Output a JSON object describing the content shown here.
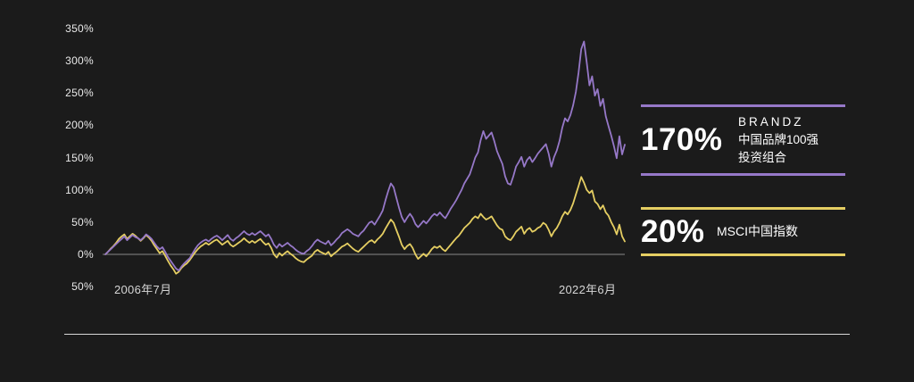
{
  "background": "#1b1b1b",
  "chart_data": {
    "type": "line",
    "title": "",
    "xlabel": "",
    "ylabel": "",
    "ylim": [
      -50,
      350
    ],
    "grid": false,
    "zero_line": true,
    "legend_position": "right",
    "x_start_label": "2006年7月",
    "x_end_label": "2022年6月",
    "y_ticks": [
      "350%",
      "300%",
      "250%",
      "200%",
      "150%",
      "100%",
      "50%",
      "0%",
      "50%"
    ],
    "y_tick_values": [
      350,
      300,
      250,
      200,
      150,
      100,
      50,
      0,
      -50
    ],
    "series": [
      {
        "name": "BRANDZ 中国品牌100强 投资组合",
        "color": "#9678c8",
        "final_label": "170%",
        "values": [
          0,
          4,
          8,
          12,
          16,
          20,
          24,
          28,
          22,
          26,
          30,
          27,
          25,
          22,
          26,
          31,
          28,
          24,
          18,
          12,
          8,
          11,
          4,
          -4,
          -10,
          -16,
          -22,
          -25,
          -19,
          -14,
          -10,
          -6,
          1,
          8,
          14,
          18,
          21,
          23,
          20,
          24,
          27,
          29,
          26,
          22,
          26,
          30,
          24,
          21,
          25,
          28,
          32,
          36,
          32,
          30,
          33,
          30,
          33,
          36,
          32,
          28,
          31,
          24,
          15,
          10,
          16,
          12,
          15,
          18,
          14,
          11,
          7,
          4,
          2,
          1,
          5,
          8,
          13,
          19,
          23,
          20,
          18,
          16,
          21,
          14,
          18,
          23,
          27,
          33,
          36,
          39,
          36,
          32,
          30,
          28,
          33,
          37,
          43,
          49,
          51,
          46,
          53,
          60,
          68,
          84,
          98,
          110,
          104,
          88,
          72,
          58,
          50,
          57,
          63,
          57,
          47,
          42,
          47,
          52,
          48,
          53,
          59,
          63,
          60,
          65,
          60,
          56,
          63,
          71,
          77,
          84,
          92,
          100,
          110,
          117,
          124,
          137,
          150,
          158,
          177,
          191,
          179,
          184,
          189,
          176,
          160,
          150,
          140,
          121,
          110,
          108,
          121,
          136,
          143,
          151,
          136,
          146,
          151,
          143,
          149,
          156,
          161,
          166,
          171,
          156,
          136,
          151,
          161,
          176,
          196,
          211,
          206,
          216,
          231,
          252,
          282,
          318,
          330,
          298,
          262,
          276,
          246,
          256,
          230,
          241,
          214,
          199,
          184,
          168,
          149,
          183,
          155,
          170
        ]
      },
      {
        "name": "MSCI中国指数",
        "color": "#e5ce62",
        "final_label": "20%",
        "values": [
          0,
          4,
          9,
          13,
          18,
          24,
          28,
          31,
          24,
          28,
          32,
          29,
          25,
          21,
          25,
          30,
          26,
          21,
          14,
          8,
          2,
          5,
          -2,
          -10,
          -17,
          -23,
          -30,
          -27,
          -21,
          -17,
          -14,
          -9,
          -3,
          3,
          8,
          12,
          15,
          18,
          15,
          18,
          21,
          23,
          19,
          15,
          18,
          21,
          15,
          12,
          15,
          18,
          21,
          25,
          21,
          18,
          21,
          18,
          21,
          24,
          19,
          15,
          17,
          10,
          0,
          -5,
          2,
          -2,
          2,
          5,
          1,
          -2,
          -6,
          -9,
          -11,
          -12,
          -8,
          -5,
          -2,
          4,
          7,
          4,
          2,
          0,
          4,
          -3,
          1,
          4,
          8,
          12,
          14,
          17,
          13,
          9,
          6,
          4,
          8,
          12,
          16,
          20,
          22,
          18,
          23,
          27,
          32,
          40,
          47,
          54,
          49,
          38,
          27,
          15,
          8,
          13,
          16,
          10,
          0,
          -7,
          -3,
          1,
          -3,
          2,
          8,
          12,
          10,
          13,
          8,
          5,
          10,
          15,
          20,
          25,
          29,
          35,
          41,
          45,
          49,
          55,
          59,
          56,
          63,
          58,
          54,
          56,
          59,
          52,
          45,
          40,
          38,
          28,
          24,
          22,
          28,
          35,
          39,
          43,
          32,
          38,
          41,
          35,
          37,
          41,
          43,
          49,
          46,
          38,
          28,
          36,
          41,
          49,
          59,
          66,
          62,
          69,
          79,
          93,
          106,
          120,
          111,
          100,
          95,
          99,
          82,
          78,
          70,
          76,
          65,
          60,
          50,
          42,
          31,
          46,
          28,
          20
        ]
      }
    ]
  },
  "legend": {
    "brandz": {
      "value": "170%",
      "line1": "BRANDZ",
      "line2": "中国品牌100强",
      "line3": "投资组合",
      "color": "#9678c8"
    },
    "msci": {
      "value": "20%",
      "label": "MSCI中国指数",
      "color": "#e5ce62"
    }
  },
  "colors": {
    "background": "#1b1b1b",
    "zero_line": "#8a8a8a",
    "tick_text": "#eaeaea",
    "divider": "#d8d8d8"
  }
}
